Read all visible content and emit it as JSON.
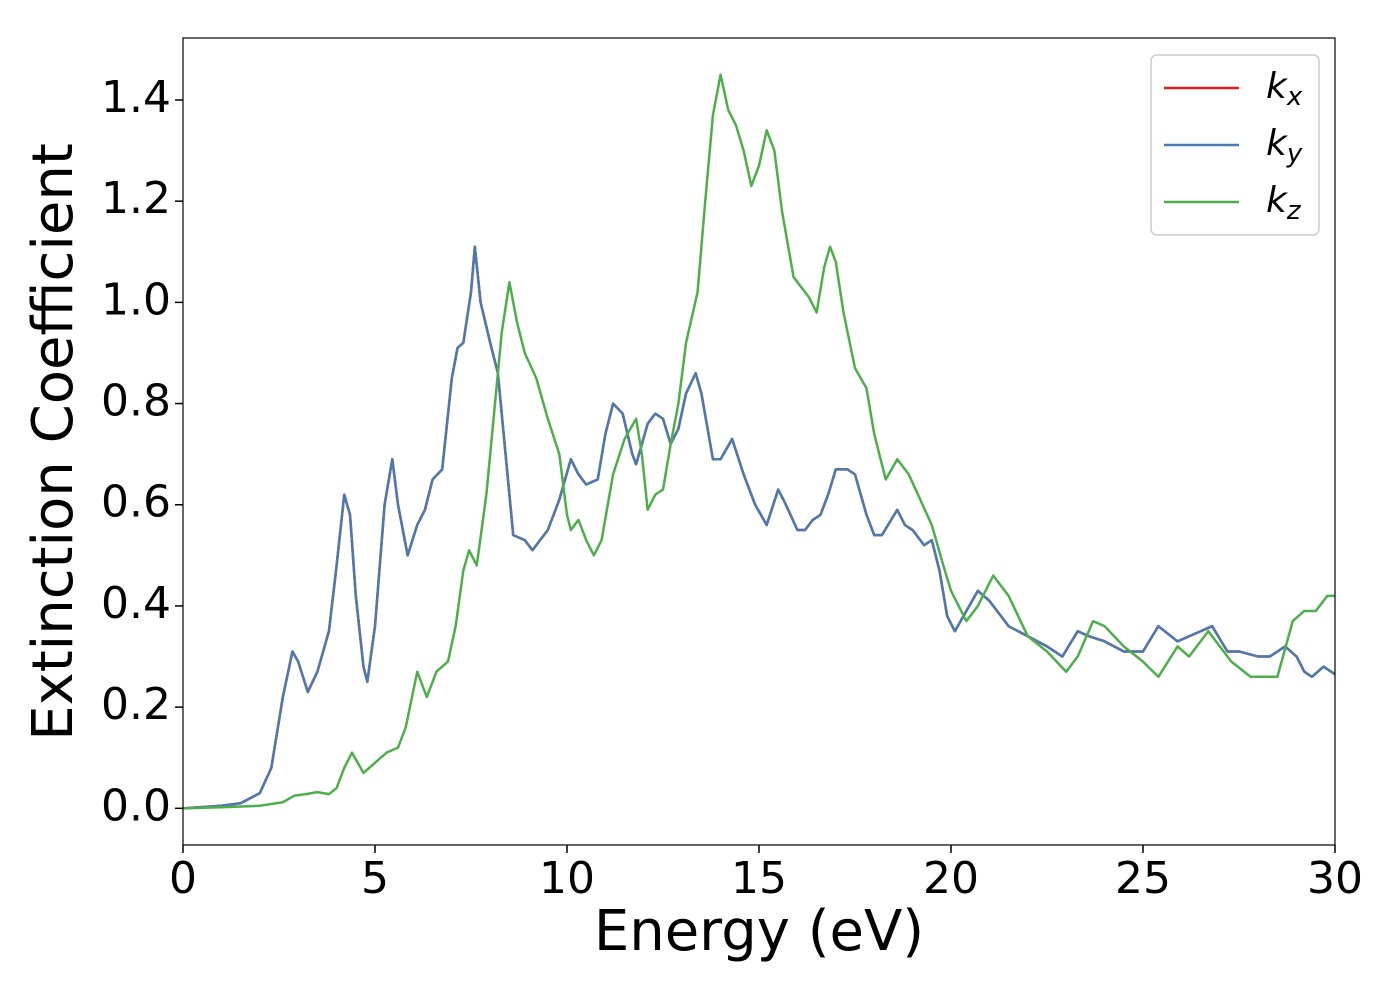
{
  "chart_data": {
    "type": "line",
    "xlabel": "Energy (eV)",
    "ylabel": "Extinction Coefficient",
    "xlim": [
      0,
      30
    ],
    "ylim": [
      -0.0725,
      1.5225
    ],
    "xticks": [
      0,
      5,
      10,
      15,
      20,
      25,
      30
    ],
    "yticks": [
      {
        "value": 0,
        "label": "0.0"
      },
      0.2,
      0.4,
      0.6,
      0.8,
      {
        "value": 1,
        "label": "1.0"
      },
      1.2,
      1.4
    ],
    "legend": "upper right",
    "series": [
      {
        "name": "kx",
        "color": "#e41a1c",
        "x": [
          0,
          1,
          1.5,
          2,
          2.3,
          2.6,
          2.85,
          3.0,
          3.25,
          3.5,
          3.8,
          4.0,
          4.2,
          4.35,
          4.5,
          4.7,
          4.8,
          5.0,
          5.25,
          5.45,
          5.6,
          5.85,
          6.1,
          6.3,
          6.5,
          6.75,
          7.0,
          7.15,
          7.3,
          7.5,
          7.6,
          7.75,
          8.0,
          8.2,
          8.4,
          8.6,
          8.9,
          9.1,
          9.5,
          9.8,
          10.1,
          10.3,
          10.5,
          10.8,
          11.0,
          11.2,
          11.45,
          11.7,
          11.8,
          12.1,
          12.3,
          12.5,
          12.7,
          12.9,
          13.1,
          13.35,
          13.5,
          13.8,
          14.0,
          14.3,
          14.6,
          14.9,
          15.2,
          15.5,
          15.7,
          16.0,
          16.2,
          16.4,
          16.6,
          16.8,
          17.0,
          17.3,
          17.5,
          17.8,
          18.0,
          18.2,
          18.6,
          18.8,
          19.0,
          19.3,
          19.5,
          19.7,
          19.9,
          20.1,
          20.4,
          20.7,
          21.0,
          21.5,
          22.0,
          22.5,
          22.9,
          23.3,
          23.6,
          24.0,
          24.5,
          25.0,
          25.4,
          25.9,
          26.5,
          26.8,
          27.2,
          27.5,
          28.0,
          28.3,
          28.7,
          29.0,
          29.2,
          29.4,
          29.7,
          30.0
        ],
        "values": [
          0,
          0.005,
          0.01,
          0.03,
          0.08,
          0.22,
          0.31,
          0.29,
          0.23,
          0.27,
          0.35,
          0.48,
          0.62,
          0.58,
          0.42,
          0.28,
          0.25,
          0.36,
          0.6,
          0.69,
          0.6,
          0.5,
          0.56,
          0.59,
          0.65,
          0.67,
          0.85,
          0.91,
          0.92,
          1.02,
          1.11,
          1.0,
          0.92,
          0.86,
          0.7,
          0.54,
          0.53,
          0.51,
          0.55,
          0.61,
          0.69,
          0.66,
          0.64,
          0.65,
          0.74,
          0.8,
          0.78,
          0.7,
          0.68,
          0.76,
          0.78,
          0.77,
          0.72,
          0.75,
          0.82,
          0.86,
          0.82,
          0.69,
          0.69,
          0.73,
          0.66,
          0.6,
          0.56,
          0.63,
          0.6,
          0.55,
          0.55,
          0.57,
          0.58,
          0.62,
          0.67,
          0.67,
          0.66,
          0.58,
          0.54,
          0.54,
          0.59,
          0.56,
          0.55,
          0.52,
          0.53,
          0.47,
          0.38,
          0.35,
          0.39,
          0.43,
          0.41,
          0.36,
          0.34,
          0.32,
          0.3,
          0.35,
          0.34,
          0.33,
          0.31,
          0.31,
          0.36,
          0.33,
          0.35,
          0.36,
          0.31,
          0.31,
          0.3,
          0.3,
          0.32,
          0.3,
          0.27,
          0.26,
          0.28,
          0.265
        ]
      },
      {
        "name": "ky",
        "color": "#4a7ab0",
        "x": [
          0,
          1,
          1.5,
          2,
          2.3,
          2.6,
          2.85,
          3.0,
          3.25,
          3.5,
          3.8,
          4.0,
          4.2,
          4.35,
          4.5,
          4.7,
          4.8,
          5.0,
          5.25,
          5.45,
          5.6,
          5.85,
          6.1,
          6.3,
          6.5,
          6.75,
          7.0,
          7.15,
          7.3,
          7.5,
          7.6,
          7.75,
          8.0,
          8.2,
          8.4,
          8.6,
          8.9,
          9.1,
          9.5,
          9.8,
          10.1,
          10.3,
          10.5,
          10.8,
          11.0,
          11.2,
          11.45,
          11.7,
          11.8,
          12.1,
          12.3,
          12.5,
          12.7,
          12.9,
          13.1,
          13.35,
          13.5,
          13.8,
          14.0,
          14.3,
          14.6,
          14.9,
          15.2,
          15.5,
          15.7,
          16.0,
          16.2,
          16.4,
          16.6,
          16.8,
          17.0,
          17.3,
          17.5,
          17.8,
          18.0,
          18.2,
          18.6,
          18.8,
          19.0,
          19.3,
          19.5,
          19.7,
          19.9,
          20.1,
          20.4,
          20.7,
          21.0,
          21.5,
          22.0,
          22.5,
          22.9,
          23.3,
          23.6,
          24.0,
          24.5,
          25.0,
          25.4,
          25.9,
          26.5,
          26.8,
          27.2,
          27.5,
          28.0,
          28.3,
          28.7,
          29.0,
          29.2,
          29.4,
          29.7,
          30.0
        ],
        "values": [
          0,
          0.005,
          0.01,
          0.03,
          0.08,
          0.22,
          0.31,
          0.29,
          0.23,
          0.27,
          0.35,
          0.48,
          0.62,
          0.58,
          0.42,
          0.28,
          0.25,
          0.36,
          0.6,
          0.69,
          0.6,
          0.5,
          0.56,
          0.59,
          0.65,
          0.67,
          0.85,
          0.91,
          0.92,
          1.02,
          1.11,
          1.0,
          0.92,
          0.86,
          0.7,
          0.54,
          0.53,
          0.51,
          0.55,
          0.61,
          0.69,
          0.66,
          0.64,
          0.65,
          0.74,
          0.8,
          0.78,
          0.7,
          0.68,
          0.76,
          0.78,
          0.77,
          0.72,
          0.75,
          0.82,
          0.86,
          0.82,
          0.69,
          0.69,
          0.73,
          0.66,
          0.6,
          0.56,
          0.63,
          0.6,
          0.55,
          0.55,
          0.57,
          0.58,
          0.62,
          0.67,
          0.67,
          0.66,
          0.58,
          0.54,
          0.54,
          0.59,
          0.56,
          0.55,
          0.52,
          0.53,
          0.47,
          0.38,
          0.35,
          0.39,
          0.43,
          0.41,
          0.36,
          0.34,
          0.32,
          0.3,
          0.35,
          0.34,
          0.33,
          0.31,
          0.31,
          0.36,
          0.33,
          0.35,
          0.36,
          0.31,
          0.31,
          0.3,
          0.3,
          0.32,
          0.3,
          0.27,
          0.26,
          0.28,
          0.265
        ]
      },
      {
        "name": "kz",
        "color": "#4daf4a",
        "x": [
          0,
          1,
          2,
          2.6,
          2.9,
          3.2,
          3.5,
          3.8,
          4.0,
          4.2,
          4.4,
          4.55,
          4.7,
          5.0,
          5.3,
          5.6,
          5.8,
          6.1,
          6.35,
          6.6,
          6.9,
          7.1,
          7.3,
          7.45,
          7.65,
          7.9,
          8.1,
          8.3,
          8.5,
          8.7,
          8.9,
          9.2,
          9.5,
          9.8,
          10.0,
          10.1,
          10.3,
          10.5,
          10.7,
          10.9,
          11.2,
          11.5,
          11.8,
          11.95,
          12.1,
          12.3,
          12.5,
          12.7,
          12.9,
          13.1,
          13.4,
          13.6,
          13.8,
          14.0,
          14.2,
          14.4,
          14.6,
          14.8,
          15.0,
          15.2,
          15.4,
          15.6,
          15.9,
          16.1,
          16.3,
          16.5,
          16.7,
          16.85,
          17.0,
          17.2,
          17.5,
          17.8,
          18.0,
          18.3,
          18.6,
          18.9,
          19.2,
          19.5,
          19.8,
          20.0,
          20.4,
          20.7,
          21.1,
          21.5,
          22.0,
          22.5,
          23.0,
          23.3,
          23.7,
          24.0,
          24.5,
          25.0,
          25.4,
          25.9,
          26.2,
          26.7,
          27.0,
          27.3,
          27.8,
          28.2,
          28.5,
          28.9,
          29.2,
          29.5,
          29.8,
          30.0
        ],
        "values": [
          0,
          0.002,
          0.005,
          0.012,
          0.025,
          0.028,
          0.032,
          0.028,
          0.04,
          0.08,
          0.11,
          0.09,
          0.07,
          0.09,
          0.11,
          0.12,
          0.16,
          0.27,
          0.22,
          0.27,
          0.29,
          0.36,
          0.47,
          0.51,
          0.48,
          0.62,
          0.78,
          0.94,
          1.04,
          0.96,
          0.9,
          0.85,
          0.77,
          0.7,
          0.58,
          0.55,
          0.57,
          0.53,
          0.5,
          0.53,
          0.66,
          0.73,
          0.77,
          0.7,
          0.59,
          0.62,
          0.63,
          0.72,
          0.8,
          0.92,
          1.02,
          1.2,
          1.37,
          1.45,
          1.38,
          1.35,
          1.3,
          1.23,
          1.27,
          1.34,
          1.3,
          1.18,
          1.05,
          1.03,
          1.01,
          0.98,
          1.07,
          1.11,
          1.08,
          0.98,
          0.87,
          0.83,
          0.74,
          0.65,
          0.69,
          0.66,
          0.61,
          0.56,
          0.48,
          0.43,
          0.37,
          0.4,
          0.46,
          0.42,
          0.34,
          0.31,
          0.27,
          0.3,
          0.37,
          0.36,
          0.32,
          0.29,
          0.26,
          0.32,
          0.3,
          0.35,
          0.32,
          0.29,
          0.26,
          0.26,
          0.26,
          0.37,
          0.39,
          0.39,
          0.42,
          0.42
        ]
      }
    ]
  }
}
